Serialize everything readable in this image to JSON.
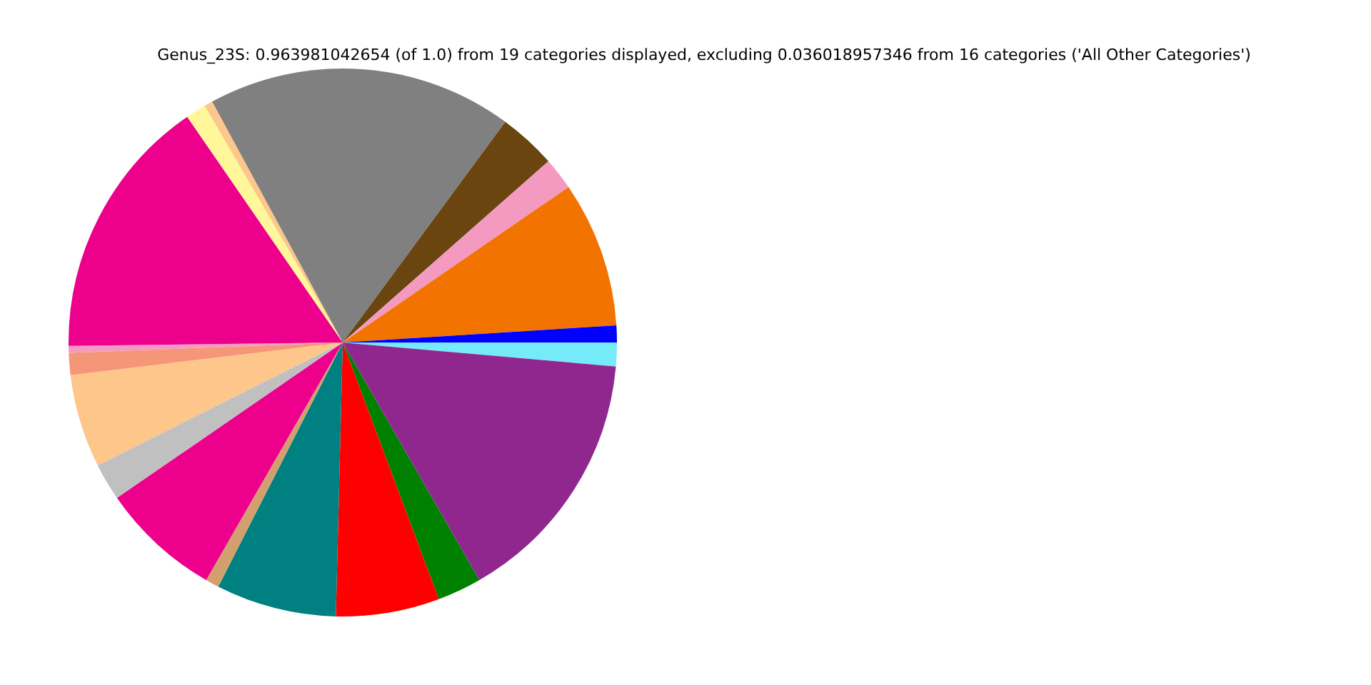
{
  "chart_data": {
    "type": "pie",
    "title": "Genus_23S: 0.963981042654 (of 1.0) from 19 categories displayed, excluding 0.036018957346 from 16 categories ('All Other Categories')",
    "categories": [
      null,
      null,
      null,
      null,
      null,
      null,
      null,
      null,
      null,
      null,
      null,
      null,
      null,
      null,
      null,
      null,
      null,
      null,
      null
    ],
    "values": [
      1.4,
      15.3,
      2.6,
      6.1,
      7.1,
      0.8,
      7.1,
      2.2,
      5.5,
      1.3,
      0.4,
      15.6,
      1.2,
      0.5,
      18.0,
      3.4,
      1.9,
      8.6,
      1.0
    ],
    "colors": [
      "#75eaf8",
      "#90278e",
      "#008000",
      "#ff0000",
      "#008080",
      "#d2a06f",
      "#ec008c",
      "#c0c0c0",
      "#fdc68a",
      "#f69679",
      "#f49ac1",
      "#ec008c",
      "#fff799",
      "#fdc68a",
      "#808080",
      "#6a450f",
      "#f49ac1",
      "#f37301",
      "#0000ff"
    ],
    "legend": false
  }
}
